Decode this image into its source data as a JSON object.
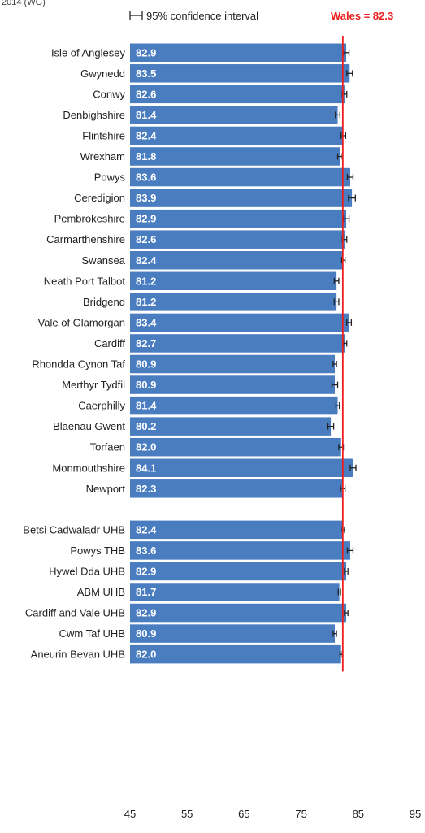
{
  "top_note": "2014 (WG)",
  "chart_data": {
    "type": "bar",
    "orientation": "horizontal",
    "categories": [
      "Isle of Anglesey",
      "Gwynedd",
      "Conwy",
      "Denbighshire",
      "Flintshire",
      "Wrexham",
      "Powys",
      "Ceredigion",
      "Pembrokeshire",
      "Carmarthenshire",
      "Swansea",
      "Neath Port Talbot",
      "Bridgend",
      "Vale of Glamorgan",
      "Cardiff",
      "Rhondda Cynon Taf",
      "Merthyr Tydfil",
      "Caerphilly",
      "Blaenau Gwent",
      "Torfaen",
      "Monmouthshire",
      "Newport",
      "Betsi Cadwaladr UHB",
      "Powys THB",
      "Hywel Dda UHB",
      "ABM UHB",
      "Cardiff and Vale UHB",
      "Cwm Taf UHB",
      "Aneurin Bevan UHB"
    ],
    "values": [
      82.9,
      83.5,
      82.6,
      81.4,
      82.4,
      81.8,
      83.6,
      83.9,
      82.9,
      82.6,
      82.4,
      81.2,
      81.2,
      83.4,
      82.7,
      80.9,
      80.9,
      81.4,
      80.2,
      82.0,
      84.1,
      82.3,
      82.4,
      83.6,
      82.9,
      81.7,
      82.9,
      80.9,
      82.0
    ],
    "value_labels": [
      "82.9",
      "83.5",
      "82.6",
      "81.4",
      "82.4",
      "81.8",
      "83.6",
      "83.9",
      "82.9",
      "82.6",
      "82.4",
      "81.2",
      "81.2",
      "83.4",
      "82.7",
      "80.9",
      "80.9",
      "81.4",
      "80.2",
      "82.0",
      "84.1",
      "82.3",
      "82.4",
      "83.6",
      "82.9",
      "81.7",
      "82.9",
      "80.9",
      "82.0"
    ],
    "ci_half_width": [
      0.5,
      0.5,
      0.4,
      0.4,
      0.4,
      0.4,
      0.5,
      0.6,
      0.5,
      0.4,
      0.3,
      0.4,
      0.4,
      0.4,
      0.3,
      0.3,
      0.5,
      0.3,
      0.5,
      0.4,
      0.5,
      0.4,
      0.2,
      0.5,
      0.3,
      0.2,
      0.3,
      0.3,
      0.2
    ],
    "group_sizes": [
      22,
      7
    ],
    "xlim": [
      45,
      95
    ],
    "xticks": [
      "45",
      "55",
      "65",
      "75",
      "85",
      "95"
    ],
    "bar_color": "#4a7cc0",
    "legend": {
      "ci_label": "95% confidence interval",
      "position": "top"
    },
    "reference": {
      "label": "Wales = 82.3",
      "value": 82.3,
      "color": "#ee1c1c"
    },
    "grid": false
  }
}
